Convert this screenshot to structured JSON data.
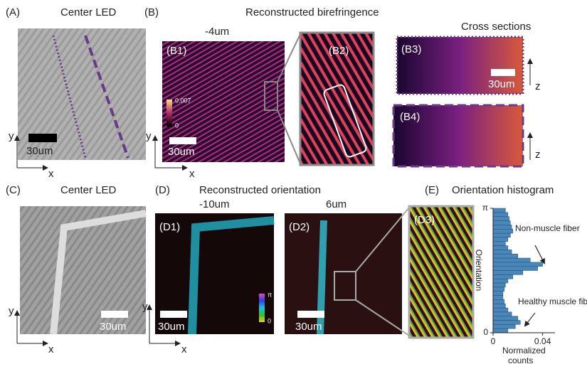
{
  "panel_a": {
    "label": "(A)",
    "title": "Center LED",
    "scale_bar": "30um",
    "x_axis": "x",
    "y_axis": "y"
  },
  "panel_b": {
    "label": "(B)",
    "title": "Reconstructed birefringence",
    "depth": "-4um",
    "cross_sections": "Cross sections",
    "b1": {
      "label": "(B1)",
      "colorbar_max": "0.007",
      "colorbar_min": "0",
      "scale_bar": "30um",
      "x_axis": "x",
      "y_axis": "y"
    },
    "b2": {
      "label": "(B2)"
    },
    "b3": {
      "label": "(B3)",
      "scale_bar": "30um",
      "z_axis": "z"
    },
    "b4": {
      "label": "(B4)",
      "z_axis": "z"
    }
  },
  "panel_c": {
    "label": "(C)",
    "title": "Center LED",
    "scale_bar": "30um",
    "x_axis": "x",
    "y_axis": "y"
  },
  "panel_d": {
    "label": "(D)",
    "title": "Reconstructed orientation",
    "d1": {
      "label": "(D1)",
      "depth": "-10um",
      "colorbar_max": "π",
      "colorbar_min": "0",
      "scale_bar": "30um",
      "x_axis": "x",
      "y_axis": "y"
    },
    "d2": {
      "label": "(D2)",
      "depth": "6um",
      "scale_bar": "30um"
    },
    "d3": {
      "label": "(D3)"
    }
  },
  "histogram": {
    "label": "(E)",
    "title": "Orientation histogram",
    "xlabel": "Normalized counts",
    "ylabel": "Orientation",
    "annotation_top": "Non-muscle fiber",
    "annotation_bottom": "Healthy muscle fibers",
    "xlim": [
      0,
      0.05
    ],
    "xticks": [
      0,
      0.04
    ],
    "ylim": [
      0,
      3.142
    ],
    "yticks": [
      0,
      {
        "value": 3.142,
        "label": "π"
      }
    ],
    "bins": [
      0,
      0.105,
      0.209,
      0.314,
      0.419,
      0.524,
      0.628,
      0.733,
      0.838,
      0.942,
      1.047,
      1.152,
      1.257,
      1.361,
      1.466,
      1.571,
      1.676,
      1.78,
      1.885,
      1.99,
      2.094,
      2.199,
      2.304,
      2.409,
      2.513,
      2.618,
      2.723,
      2.827,
      2.932,
      3.037,
      3.142
    ],
    "counts": [
      0.012,
      0.018,
      0.022,
      0.02,
      0.015,
      0.012,
      0.01,
      0.009,
      0.008,
      0.008,
      0.009,
      0.01,
      0.012,
      0.016,
      0.024,
      0.036,
      0.04,
      0.03,
      0.02,
      0.015,
      0.012,
      0.01,
      0.012,
      0.014,
      0.016,
      0.015,
      0.014,
      0.013,
      0.012,
      0.01
    ],
    "color": "#4a86b8"
  }
}
